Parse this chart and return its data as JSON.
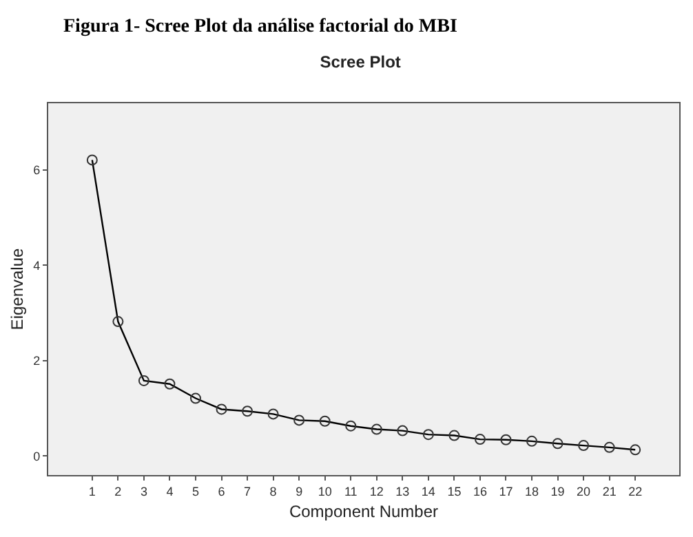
{
  "chart_data": {
    "type": "line",
    "title": "Scree Plot",
    "xlabel": "Component Number",
    "ylabel": "Eigenvalue",
    "annotations": [
      "Figura 1- Scree Plot da análise factorial do MBI"
    ],
    "x": [
      1,
      2,
      3,
      4,
      5,
      6,
      7,
      8,
      9,
      10,
      11,
      12,
      13,
      14,
      15,
      16,
      17,
      18,
      19,
      20,
      21,
      22
    ],
    "series": [
      {
        "color": "#000000",
        "values": [
          6.21,
          2.82,
          1.58,
          1.51,
          1.21,
          0.98,
          0.94,
          0.88,
          0.75,
          0.73,
          0.63,
          0.56,
          0.53,
          0.45,
          0.43,
          0.35,
          0.34,
          0.31,
          0.26,
          0.22,
          0.18,
          0.13
        ]
      }
    ],
    "xlim": [
      -0.7,
      23.7
    ],
    "ylim": [
      -0.4,
      7.4
    ],
    "xticks": [
      1,
      2,
      3,
      4,
      5,
      6,
      7,
      8,
      9,
      10,
      11,
      12,
      13,
      14,
      15,
      16,
      17,
      18,
      19,
      20,
      21,
      22
    ],
    "yticks": [
      0,
      2,
      4,
      6
    ],
    "marker": "circle",
    "line_style": "solid",
    "grid": false,
    "legend": false
  }
}
